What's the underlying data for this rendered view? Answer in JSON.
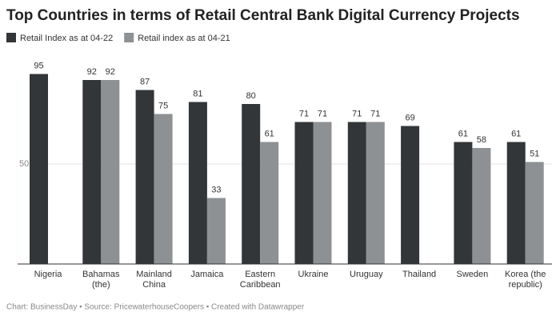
{
  "chart_data": {
    "type": "bar",
    "title": "Top Countries in terms of Retail Central Bank Digital Currency Projects",
    "categories": [
      "Nigeria",
      "Bahamas (the)",
      "Mainland China",
      "Jamaica",
      "Eastern Caribbean",
      "Ukraine",
      "Uruguay",
      "Thailand",
      "Sweden",
      "Korea (the republic)"
    ],
    "series": [
      {
        "name": "Retail Index as at 04-22",
        "color": "#323639",
        "values": [
          95,
          92,
          87,
          81,
          80,
          71,
          71,
          69,
          61,
          61
        ]
      },
      {
        "name": "Retail index as at 04-21",
        "color": "#8e9194",
        "values": [
          null,
          92,
          75,
          33,
          61,
          71,
          71,
          null,
          58,
          51
        ]
      }
    ],
    "ylim": [
      0,
      100
    ],
    "yticks": [
      50
    ],
    "grid": true,
    "source": "Chart: BusinessDay • Source: PricewaterhouseCoopers • Created with Datawrapper"
  }
}
